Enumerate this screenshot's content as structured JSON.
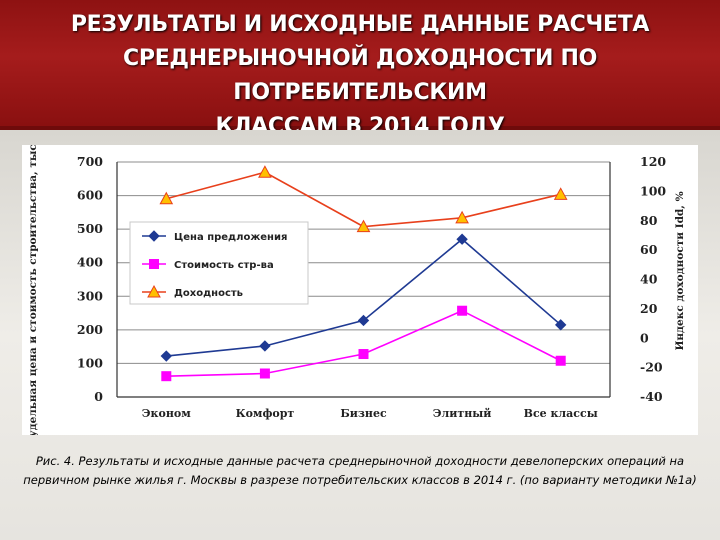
{
  "header": {
    "title_lines": [
      "РЕЗУЛЬТАТЫ И ИСХОДНЫЕ ДАННЫЕ РАСЧЕТА",
      "СРЕДНЕРЫНОЧНОЙ ДОХОДНОСТИ ПО ПОТРЕБИТЕЛЬСКИМ",
      "КЛАССАМ В 2014 ГОДУ"
    ]
  },
  "caption": {
    "lines": [
      "Рис. 4. Результаты и исходные данные расчета среднерыночной доходности девелоперских операций на",
      "первичном рынке жилья г. Москвы в разрезе потребительских классов в 2014 г. (по варианту методики №1а)"
    ]
  },
  "colors": {
    "header_bg": "#a51c1c",
    "price_series": "#1f3a93",
    "cost_series": "#ff00ff",
    "yield_series": "#e8401c",
    "yield_marker_fill": "#ffc000"
  },
  "chart_data": {
    "type": "line",
    "categories": [
      "Эконом",
      "Комфорт",
      "Бизнес",
      "Элитный",
      "Все классы"
    ],
    "ylabel": "Средняя удельная цена и стоимость строительства, тыс. руб./кв.м",
    "y2label": "Индекс доходности Idd, %",
    "ylim": [
      0,
      700
    ],
    "y2lim": [
      -40,
      120
    ],
    "yticks": [
      "0",
      "100",
      "200",
      "300",
      "400",
      "500",
      "600",
      "700"
    ],
    "y2ticks": [
      "-40",
      "-20",
      "0",
      "20",
      "40",
      "60",
      "80",
      "100",
      "120"
    ],
    "grid": true,
    "legend_position": "middle-left",
    "series": [
      {
        "name": "Цена предложения",
        "axis": "left",
        "marker": "diamond",
        "values": [
          122,
          152,
          228,
          470,
          215
        ]
      },
      {
        "name": "Стоимость стр-ва",
        "axis": "left",
        "marker": "square",
        "values": [
          62,
          70,
          128,
          257,
          108
        ]
      },
      {
        "name": "Доходность",
        "axis": "right",
        "marker": "triangle",
        "values": [
          95,
          113,
          76,
          82,
          98
        ]
      }
    ]
  }
}
